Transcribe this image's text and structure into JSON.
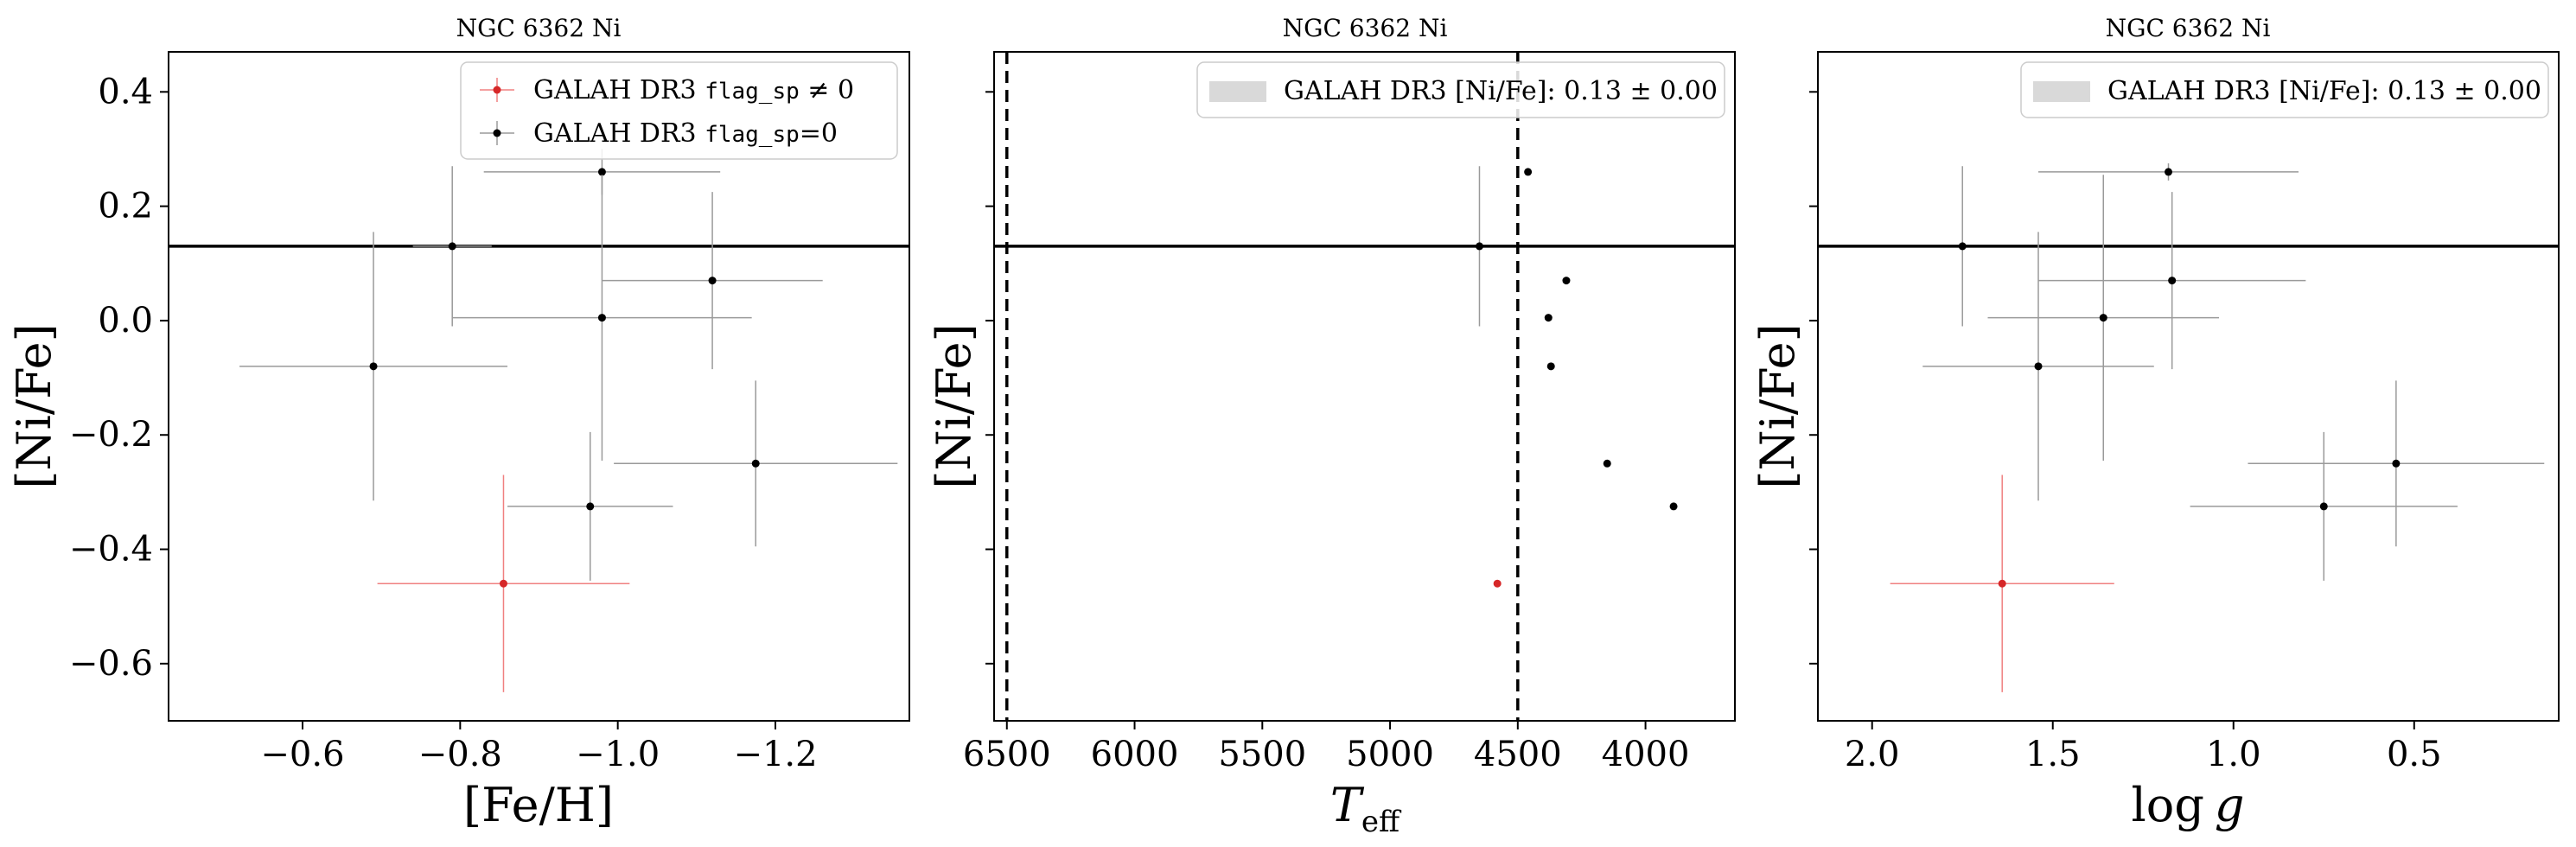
{
  "chart_data": [
    {
      "type": "scatter",
      "title": "NGC 6362 Ni",
      "xlabel": "[Fe/H]",
      "ylabel": "[Ni/Fe]",
      "xlim": [
        -0.43,
        -1.37
      ],
      "ylim": [
        -0.7,
        0.47
      ],
      "x_inverted": true,
      "xticks": [
        -0.6,
        -0.8,
        -1.0,
        -1.2
      ],
      "xtick_labels": [
        "−0.6",
        "−0.8",
        "−1.0",
        "−1.2"
      ],
      "yticks": [
        -0.6,
        -0.4,
        -0.2,
        0.0,
        0.2,
        0.4
      ],
      "ytick_labels": [
        "−0.6",
        "−0.4",
        "−0.2",
        "0.0",
        "0.2",
        "0.4"
      ],
      "show_ytick_labels": true,
      "hline": 0.13,
      "vlines": [],
      "legend_location": "top-right",
      "legend": [
        {
          "label": "GALAH DR3 flag_sp ≠ 0",
          "color": "#d62728",
          "kind": "errorbar"
        },
        {
          "label": "GALAH DR3 flag_sp=0",
          "color": "#000000",
          "kind": "errorbar"
        }
      ],
      "series": [
        {
          "flag": "flag_sp=0",
          "color": "#000000",
          "points": [
            {
              "x": -0.69,
              "y": -0.08,
              "xerr": 0.17,
              "yerr": 0.235
            },
            {
              "x": -0.79,
              "y": 0.13,
              "xerr": 0.05,
              "yerr": 0.14
            },
            {
              "x": -0.98,
              "y": 0.26,
              "xerr": 0.15,
              "yerr": 0.04
            },
            {
              "x": -0.98,
              "y": 0.005,
              "xerr": 0.19,
              "yerr": 0.25
            },
            {
              "x": -1.12,
              "y": 0.07,
              "xerr": 0.14,
              "yerr": 0.155
            },
            {
              "x": -0.965,
              "y": -0.325,
              "xerr": 0.105,
              "yerr": 0.13
            },
            {
              "x": -1.175,
              "y": -0.25,
              "xerr": 0.18,
              "yerr": 0.145
            }
          ]
        },
        {
          "flag": "flag_sp≠0",
          "color": "#d62728",
          "points": [
            {
              "x": -0.855,
              "y": -0.46,
              "xerr": 0.16,
              "yerr": 0.19
            }
          ]
        }
      ]
    },
    {
      "type": "scatter",
      "title": "NGC 6362 Ni",
      "xlabel": "T_eff",
      "ylabel": "[Ni/Fe]",
      "xlim": [
        6550,
        3650
      ],
      "ylim": [
        -0.7,
        0.47
      ],
      "x_inverted": true,
      "xticks": [
        6500,
        6000,
        5500,
        5000,
        4500,
        4000
      ],
      "xtick_labels": [
        "6500",
        "6000",
        "5500",
        "5000",
        "4500",
        "4000"
      ],
      "yticks": [
        -0.6,
        -0.4,
        -0.2,
        0.0,
        0.2,
        0.4
      ],
      "ytick_labels": [
        "−0.6",
        "−0.4",
        "−0.2",
        "0.0",
        "0.2",
        "0.4"
      ],
      "show_ytick_labels": false,
      "hline": 0.13,
      "vlines": [
        6500,
        4500
      ],
      "legend_location": "top-right",
      "legend": [
        {
          "label": "GALAH DR3 [Ni/Fe]:  0.13 ± 0.00",
          "color": "#d9d9d9",
          "kind": "band"
        }
      ],
      "series": [
        {
          "flag": "flag_sp=0",
          "color": "#000000",
          "points": [
            {
              "x": 4650,
              "y": 0.13,
              "xerr": 0,
              "yerr": 0.14
            },
            {
              "x": 4460,
              "y": 0.26,
              "xerr": 0.0,
              "yerr": 0.0
            },
            {
              "x": 4310,
              "y": 0.07,
              "xerr": 0.0,
              "yerr": 0.0
            },
            {
              "x": 4380,
              "y": 0.005,
              "xerr": 0,
              "yerr": 0
            },
            {
              "x": 4370,
              "y": -0.08,
              "xerr": 0,
              "yerr": 0
            },
            {
              "x": 4150,
              "y": -0.25,
              "xerr": 0,
              "yerr": 0
            },
            {
              "x": 3890,
              "y": -0.325,
              "xerr": 0,
              "yerr": 0
            }
          ]
        },
        {
          "flag": "flag_sp≠0",
          "color": "#d62728",
          "points": [
            {
              "x": 4580,
              "y": -0.46,
              "xerr": 0,
              "yerr": 0
            }
          ]
        }
      ]
    },
    {
      "type": "scatter",
      "title": "NGC 6362 Ni",
      "xlabel": "log g",
      "ylabel": "[Ni/Fe]",
      "xlim": [
        2.15,
        0.1
      ],
      "ylim": [
        -0.7,
        0.47
      ],
      "x_inverted": true,
      "xticks": [
        2.0,
        1.5,
        1.0,
        0.5
      ],
      "xtick_labels": [
        "2.0",
        "1.5",
        "1.0",
        "0.5"
      ],
      "yticks": [
        -0.6,
        -0.4,
        -0.2,
        0.0,
        0.2,
        0.4
      ],
      "ytick_labels": [
        "−0.6",
        "−0.4",
        "−0.2",
        "0.0",
        "0.2",
        "0.4"
      ],
      "show_ytick_labels": false,
      "hline": 0.13,
      "vlines": [],
      "legend_location": "top-right",
      "legend": [
        {
          "label": "GALAH DR3 [Ni/Fe]:  0.13 ± 0.00",
          "color": "#d9d9d9",
          "kind": "band"
        }
      ],
      "series": [
        {
          "flag": "flag_sp=0",
          "color": "#000000",
          "points": [
            {
              "x": 1.75,
              "y": 0.13,
              "xerr": 0,
              "yerr": 0.14
            },
            {
              "x": 1.18,
              "y": 0.26,
              "xerr": 0.36,
              "yerr": 0.015
            },
            {
              "x": 1.17,
              "y": 0.07,
              "xerr": 0.37,
              "yerr": 0.155
            },
            {
              "x": 1.36,
              "y": 0.005,
              "xerr": 0.32,
              "yerr": 0.25
            },
            {
              "x": 1.54,
              "y": -0.08,
              "xerr": 0.32,
              "yerr": 0.235
            },
            {
              "x": 0.55,
              "y": -0.25,
              "xerr": 0.41,
              "yerr": 0.145
            },
            {
              "x": 0.75,
              "y": -0.325,
              "xerr": 0.37,
              "yerr": 0.13
            }
          ]
        },
        {
          "flag": "flag_sp≠0",
          "color": "#d62728",
          "points": [
            {
              "x": 1.64,
              "y": -0.46,
              "xerr": 0.31,
              "yerr": 0.19
            }
          ]
        }
      ]
    }
  ]
}
